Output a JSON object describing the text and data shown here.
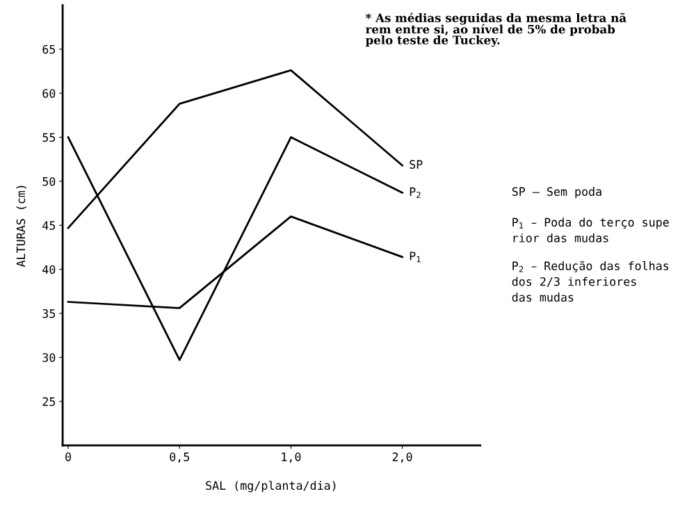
{
  "chart_data": {
    "type": "line",
    "categories": [
      "0",
      "0,5",
      "1,0",
      "2,0"
    ],
    "xlabel": "SAL (mg/planta/dia)",
    "ylabel": "ALTURAS (cm)",
    "ylim": [
      20,
      70
    ],
    "yticks": [
      25,
      30,
      35,
      40,
      45,
      50,
      55,
      60,
      65
    ],
    "grid": false,
    "legend": false,
    "marker": "none",
    "line_style": "solid",
    "series": [
      {
        "name": "SP",
        "color": "#000000",
        "values": [
          44.7,
          58.8,
          62.6,
          51.8
        ]
      },
      {
        "name": "P$_{2}$",
        "color": "#000000",
        "values": [
          55.0,
          29.7,
          55.0,
          48.7
        ]
      },
      {
        "name": "P$_{1}$",
        "color": "#000000",
        "values": [
          36.3,
          35.6,
          46.0,
          41.4
        ]
      }
    ],
    "annotations": [
      "* As médias seguidas da mesma letra nã\nrem entre si, ao nível de 5% de probab\npelo teste de Tuckey.",
      "SP – Sem poda",
      "P$_{1}$ – Poda do terço supe\nrior das mudas",
      "P$_{2}$ – Redução das folhas\ndos 2/3 inferiores\ndas mudas"
    ]
  }
}
